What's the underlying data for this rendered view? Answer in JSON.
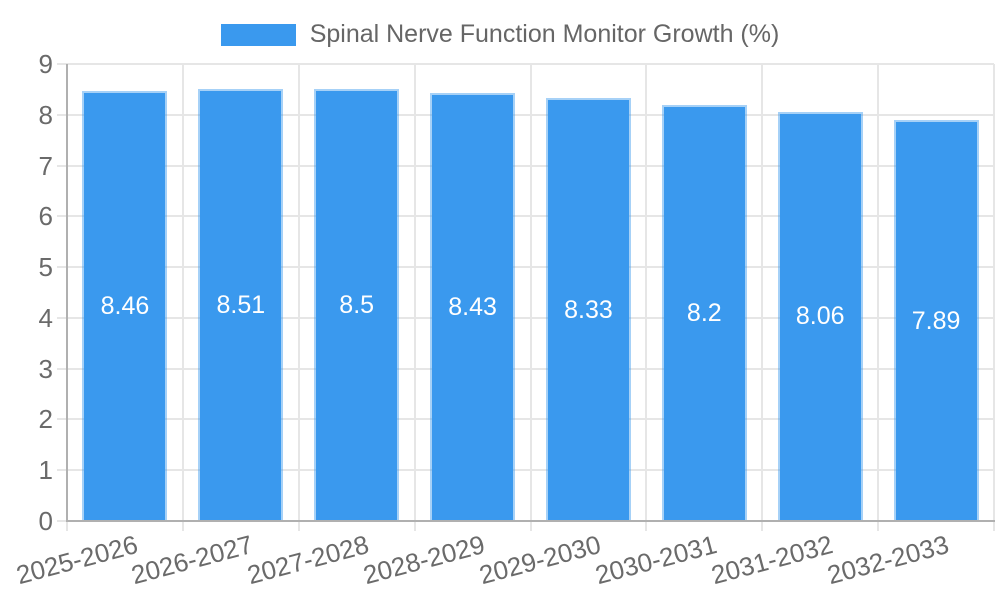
{
  "legend": {
    "items": [
      {
        "label": "Spinal Nerve Function Monitor Growth (%)",
        "color": "#3A99EE"
      }
    ]
  },
  "chart_data": {
    "type": "bar",
    "title": "Spinal Nerve Function Monitor Growth (%)",
    "categories": [
      "2025-2026",
      "2026-2027",
      "2027-2028",
      "2028-2029",
      "2029-2030",
      "2030-2031",
      "2031-2032",
      "2032-2033"
    ],
    "series": [
      {
        "name": "Spinal Nerve Function Monitor Growth (%)",
        "values": [
          8.46,
          8.51,
          8.5,
          8.43,
          8.33,
          8.2,
          8.06,
          7.89
        ]
      }
    ],
    "bar_value_labels": [
      "8.46",
      "8.51",
      "8.5",
      "8.43",
      "8.33",
      "8.2",
      "8.06",
      "7.89"
    ],
    "xlabel": "",
    "ylabel": "",
    "ylim": [
      0,
      9
    ],
    "yticks": [
      0,
      1,
      2,
      3,
      4,
      5,
      6,
      7,
      8,
      9
    ],
    "grid": true,
    "legend_position": "top",
    "x_label_rotation_deg": -15,
    "value_label_position": "inside-middle",
    "colors": {
      "bar": "#3A99EE",
      "bar_edge": "rgba(58,153,238,0.45)",
      "value_label": "#FFFFFF",
      "axis_text": "#6A6A6A",
      "grid_line": "#E6E6E6",
      "axis_line": "#B0B0B0",
      "background": "#FFFFFF"
    }
  }
}
